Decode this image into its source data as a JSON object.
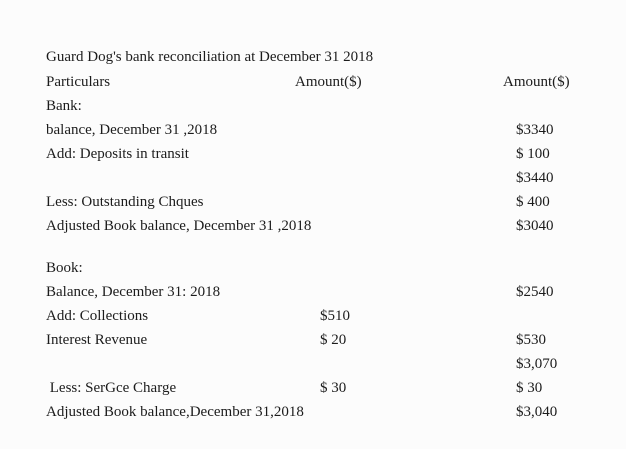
{
  "colors": {
    "background": "#fcfcfc",
    "text": "#1c1c1c"
  },
  "document": {
    "title": "Guard Dog's bank reconciliation at December 31 2018"
  },
  "table": {
    "headers": [
      "Particulars",
      "Amount($)",
      "Amount($)"
    ],
    "rows": [
      {
        "particulars": "Bank:",
        "amount_mid": "",
        "amount_right": ""
      },
      {
        "particulars": "balance, December 31 ,2018",
        "amount_mid": "",
        "amount_right": "$3340"
      },
      {
        "particulars": "Add: Deposits in transit",
        "amount_mid": "",
        "amount_right": "$ 100"
      },
      {
        "particulars": "",
        "amount_mid": "",
        "amount_right": "$3440"
      },
      {
        "particulars": "Less: Outstanding Chques",
        "amount_mid": "",
        "amount_right": "$ 400"
      },
      {
        "particulars": "Adjusted Book balance, December 31 ,2018",
        "amount_mid": "",
        "amount_right": "$3040"
      },
      {
        "particulars": "Book:",
        "amount_mid": "",
        "amount_right": ""
      },
      {
        "particulars": "Balance, December 31: 2018",
        "amount_mid": "",
        "amount_right": "$2540"
      },
      {
        "particulars": "Add: Collections",
        "amount_mid": "$510",
        "amount_right": ""
      },
      {
        "particulars": "Interest Revenue",
        "amount_mid": "$ 20",
        "amount_right": "$530"
      },
      {
        "particulars": "",
        "amount_mid": "",
        "amount_right": "$3,070"
      },
      {
        "particulars": " Less: SerGce Charge",
        "amount_mid": "$ 30",
        "amount_right": "$ 30"
      },
      {
        "particulars": "Adjusted Book balance,December 31,2018",
        "amount_mid": "",
        "amount_right": "$3,040"
      }
    ]
  }
}
